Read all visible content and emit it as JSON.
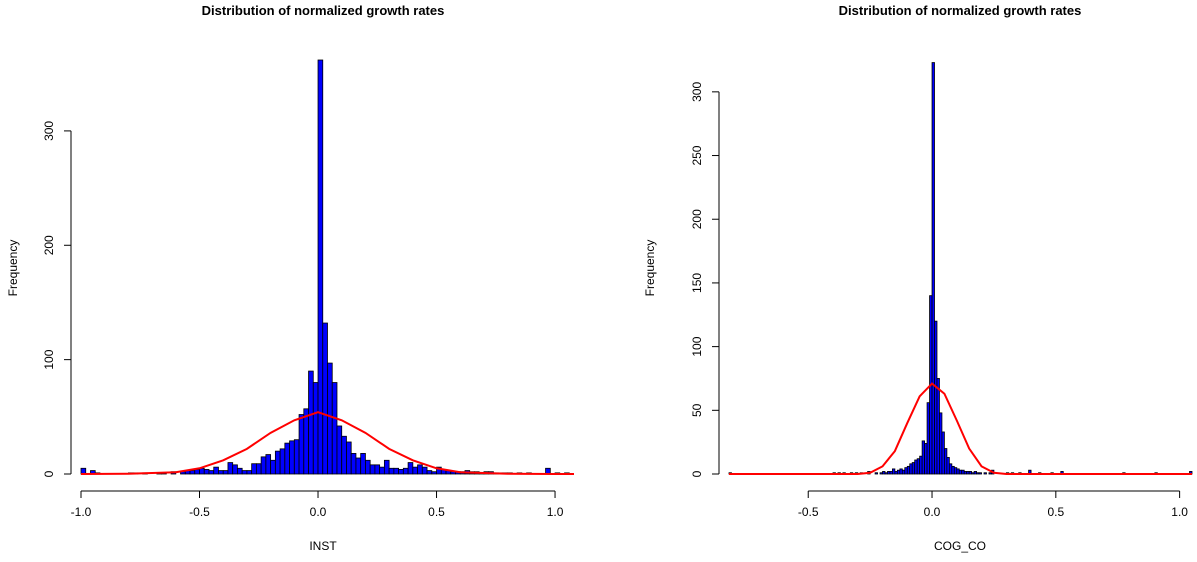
{
  "chart_data": [
    {
      "type": "bar",
      "title": "Distribution of normalized growth rates",
      "xlabel": "INST",
      "ylabel": "Frequency",
      "xlim": [
        -1.0,
        1.08
      ],
      "ylim": [
        0,
        362
      ],
      "x_ticks": [
        -1.0,
        -0.5,
        0.0,
        0.5,
        1.0
      ],
      "x_tick_labels": [
        "-1.0",
        "-0.5",
        "0.0",
        "0.5",
        "1.0"
      ],
      "y_ticks": [
        0,
        100,
        200,
        300
      ],
      "y_tick_labels": [
        "0",
        "100",
        "200",
        "300"
      ],
      "bin_width": 0.02,
      "bins": [
        [
          -0.99,
          5
        ],
        [
          -0.95,
          3
        ],
        [
          -0.93,
          1
        ],
        [
          -0.79,
          1
        ],
        [
          -0.77,
          1
        ],
        [
          -0.73,
          1
        ],
        [
          -0.67,
          1
        ],
        [
          -0.65,
          1
        ],
        [
          -0.61,
          2
        ],
        [
          -0.57,
          2
        ],
        [
          -0.55,
          3
        ],
        [
          -0.53,
          3
        ],
        [
          -0.51,
          4
        ],
        [
          -0.49,
          5
        ],
        [
          -0.47,
          4
        ],
        [
          -0.45,
          3
        ],
        [
          -0.43,
          6
        ],
        [
          -0.41,
          3
        ],
        [
          -0.39,
          3
        ],
        [
          -0.37,
          10
        ],
        [
          -0.35,
          8
        ],
        [
          -0.33,
          5
        ],
        [
          -0.31,
          3
        ],
        [
          -0.29,
          3
        ],
        [
          -0.27,
          9
        ],
        [
          -0.25,
          9
        ],
        [
          -0.23,
          15
        ],
        [
          -0.21,
          17
        ],
        [
          -0.19,
          12
        ],
        [
          -0.17,
          20
        ],
        [
          -0.15,
          22
        ],
        [
          -0.13,
          27
        ],
        [
          -0.11,
          29
        ],
        [
          -0.09,
          30
        ],
        [
          -0.07,
          52
        ],
        [
          -0.05,
          57
        ],
        [
          -0.03,
          90
        ],
        [
          -0.01,
          80
        ],
        [
          0.01,
          362
        ],
        [
          0.03,
          132
        ],
        [
          0.05,
          97
        ],
        [
          0.07,
          80
        ],
        [
          0.09,
          42
        ],
        [
          0.11,
          33
        ],
        [
          0.13,
          28
        ],
        [
          0.15,
          18
        ],
        [
          0.17,
          14
        ],
        [
          0.19,
          18
        ],
        [
          0.21,
          12
        ],
        [
          0.23,
          8
        ],
        [
          0.25,
          8
        ],
        [
          0.27,
          6
        ],
        [
          0.29,
          12
        ],
        [
          0.31,
          5
        ],
        [
          0.33,
          5
        ],
        [
          0.35,
          4
        ],
        [
          0.37,
          5
        ],
        [
          0.39,
          10
        ],
        [
          0.41,
          6
        ],
        [
          0.43,
          8
        ],
        [
          0.45,
          6
        ],
        [
          0.47,
          3
        ],
        [
          0.49,
          2
        ],
        [
          0.51,
          6
        ],
        [
          0.53,
          4
        ],
        [
          0.55,
          3
        ],
        [
          0.57,
          2
        ],
        [
          0.59,
          2
        ],
        [
          0.61,
          2
        ],
        [
          0.63,
          3
        ],
        [
          0.65,
          2
        ],
        [
          0.67,
          2
        ],
        [
          0.69,
          1
        ],
        [
          0.71,
          2
        ],
        [
          0.73,
          2
        ],
        [
          0.75,
          1
        ],
        [
          0.77,
          1
        ],
        [
          0.79,
          1
        ],
        [
          0.81,
          1
        ],
        [
          0.85,
          1
        ],
        [
          0.89,
          1
        ],
        [
          0.97,
          5
        ],
        [
          1.01,
          1
        ],
        [
          1.05,
          1
        ]
      ],
      "density": [
        [
          -1.0,
          0
        ],
        [
          -0.8,
          0.2
        ],
        [
          -0.6,
          1.5
        ],
        [
          -0.5,
          5
        ],
        [
          -0.4,
          12
        ],
        [
          -0.3,
          22
        ],
        [
          -0.2,
          36
        ],
        [
          -0.1,
          47
        ],
        [
          0.0,
          54
        ],
        [
          0.1,
          47
        ],
        [
          0.2,
          36
        ],
        [
          0.3,
          22
        ],
        [
          0.4,
          12
        ],
        [
          0.5,
          5
        ],
        [
          0.6,
          1.5
        ],
        [
          0.8,
          0.2
        ],
        [
          1.0,
          0
        ],
        [
          1.08,
          0
        ]
      ],
      "colors": {
        "bar_fill": "#0000ff",
        "bar_edge": "#000000",
        "density": "#ff0000"
      }
    },
    {
      "type": "bar",
      "title": "Distribution of normalized growth rates",
      "xlabel": "COG_CO",
      "ylabel": "Frequency",
      "xlim": [
        -0.82,
        1.05
      ],
      "ylim": [
        0,
        325
      ],
      "x_ticks": [
        -0.5,
        0.0,
        0.5,
        1.0
      ],
      "x_tick_labels": [
        "-0.5",
        "0.0",
        "0.5",
        "1.0"
      ],
      "y_ticks": [
        0,
        50,
        100,
        150,
        200,
        250,
        300
      ],
      "y_tick_labels": [
        "0",
        "50",
        "100",
        "150",
        "200",
        "250",
        "300"
      ],
      "bin_width": 0.01,
      "bins": [
        [
          -0.815,
          1
        ],
        [
          -0.395,
          1
        ],
        [
          -0.375,
          1
        ],
        [
          -0.355,
          1
        ],
        [
          -0.325,
          1
        ],
        [
          -0.305,
          1
        ],
        [
          -0.285,
          1
        ],
        [
          -0.255,
          2
        ],
        [
          -0.225,
          1
        ],
        [
          -0.205,
          1
        ],
        [
          -0.195,
          2
        ],
        [
          -0.185,
          1
        ],
        [
          -0.175,
          2
        ],
        [
          -0.165,
          2
        ],
        [
          -0.155,
          4
        ],
        [
          -0.145,
          2
        ],
        [
          -0.135,
          3
        ],
        [
          -0.125,
          4
        ],
        [
          -0.115,
          3
        ],
        [
          -0.105,
          5
        ],
        [
          -0.095,
          6
        ],
        [
          -0.085,
          8
        ],
        [
          -0.075,
          9
        ],
        [
          -0.065,
          11
        ],
        [
          -0.055,
          12
        ],
        [
          -0.045,
          14
        ],
        [
          -0.035,
          26
        ],
        [
          -0.025,
          24
        ],
        [
          -0.015,
          56
        ],
        [
          -0.005,
          140
        ],
        [
          0.005,
          323
        ],
        [
          0.015,
          120
        ],
        [
          0.025,
          75
        ],
        [
          0.035,
          48
        ],
        [
          0.045,
          33
        ],
        [
          0.055,
          20
        ],
        [
          0.065,
          13
        ],
        [
          0.075,
          8
        ],
        [
          0.085,
          6
        ],
        [
          0.095,
          5
        ],
        [
          0.105,
          4
        ],
        [
          0.115,
          3
        ],
        [
          0.125,
          3
        ],
        [
          0.135,
          2
        ],
        [
          0.145,
          2
        ],
        [
          0.155,
          2
        ],
        [
          0.165,
          1
        ],
        [
          0.175,
          2
        ],
        [
          0.185,
          1
        ],
        [
          0.195,
          1
        ],
        [
          0.215,
          1
        ],
        [
          0.235,
          1
        ],
        [
          0.245,
          3
        ],
        [
          0.305,
          1
        ],
        [
          0.325,
          1
        ],
        [
          0.355,
          1
        ],
        [
          0.395,
          3
        ],
        [
          0.435,
          1
        ],
        [
          0.485,
          1
        ],
        [
          0.525,
          2
        ],
        [
          0.775,
          1
        ],
        [
          0.905,
          1
        ],
        [
          1.045,
          2
        ]
      ],
      "density": [
        [
          -0.82,
          0
        ],
        [
          -0.3,
          0
        ],
        [
          -0.25,
          1
        ],
        [
          -0.2,
          6
        ],
        [
          -0.15,
          18
        ],
        [
          -0.1,
          40
        ],
        [
          -0.05,
          61
        ],
        [
          0.0,
          71
        ],
        [
          0.05,
          63
        ],
        [
          0.1,
          42
        ],
        [
          0.15,
          20
        ],
        [
          0.2,
          6
        ],
        [
          0.25,
          1
        ],
        [
          0.3,
          0
        ],
        [
          1.05,
          0
        ]
      ],
      "colors": {
        "bar_fill": "#0000ff",
        "bar_edge": "#000000",
        "density": "#ff0000"
      }
    }
  ]
}
